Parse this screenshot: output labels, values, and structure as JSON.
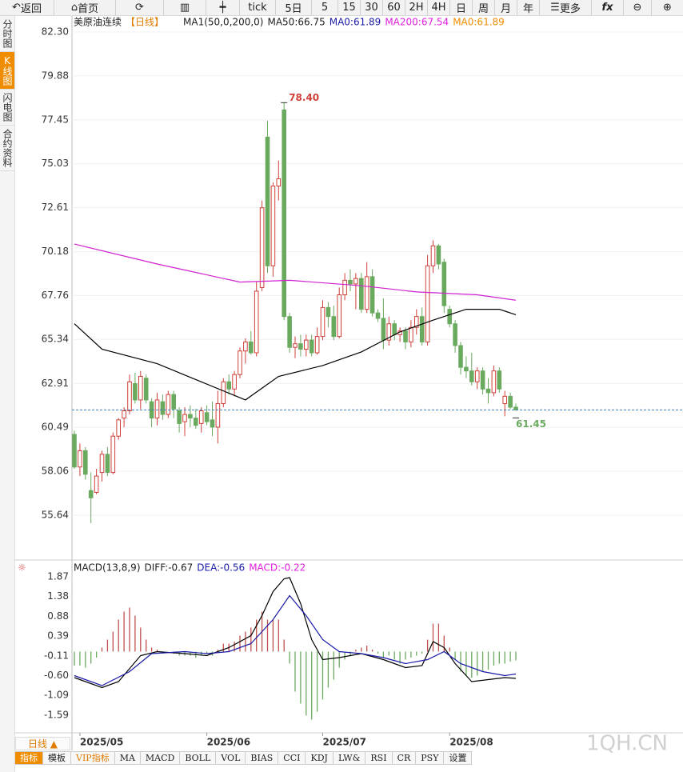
{
  "toolbar": [
    "返回",
    "首页",
    "tick",
    "5日",
    "5",
    "15",
    "30",
    "60",
    "2H",
    "4H",
    "日",
    "周",
    "月",
    "年",
    "更多",
    "fx"
  ],
  "side_tabs": [
    "分时图",
    "K线图",
    "闪电图",
    "合约资料"
  ],
  "period_button": "日线 ▲",
  "bottom_tabs": [
    "指标",
    "模板",
    "VIP指标",
    "MA",
    "MACD",
    "BOLL",
    "VOL",
    "BIAS",
    "CCI",
    "KDJ",
    "LW&",
    "RSI",
    "CR",
    "PSY",
    "设置"
  ],
  "watermark": "1QH.CN",
  "chart_data": [
    {
      "type": "candlestick",
      "legend": [
        {
          "text": "美原油连续",
          "color": "#222222"
        },
        {
          "text": "【日线】",
          "color": "#e07b00"
        },
        {
          "text": "MA1(50,0,200,0)",
          "color": "#222222"
        },
        {
          "text": "MA50:66.75",
          "color": "#222222"
        },
        {
          "text": "MA0:61.89",
          "color": "#1a1aa8"
        },
        {
          "text": "MA200:67.54",
          "color": "#e020e0"
        },
        {
          "text": "MA0:61.89",
          "color": "#f08c00"
        }
      ],
      "ylim": [
        53.39,
        82.96
      ],
      "yticks": [
        {
          "value": 82.3,
          "label": "82.30"
        },
        {
          "value": 79.88,
          "label": "79.88"
        },
        {
          "value": 77.45,
          "label": "77.45"
        },
        {
          "value": 75.03,
          "label": "75.03"
        },
        {
          "value": 72.61,
          "label": "72.61"
        },
        {
          "value": 70.18,
          "label": "70.18"
        },
        {
          "value": 67.76,
          "label": "67.76"
        },
        {
          "value": 65.34,
          "label": "65.34"
        },
        {
          "value": 62.91,
          "label": "62.91"
        },
        {
          "value": 60.49,
          "label": "60.49"
        },
        {
          "value": 58.06,
          "label": "58.06"
        },
        {
          "value": 55.64,
          "label": "55.64"
        }
      ],
      "grid": true,
      "xticks": [
        {
          "value": 1,
          "label": "2025/05"
        },
        {
          "value": 24,
          "label": "2025/06"
        },
        {
          "value": 45,
          "label": "2025/07"
        },
        {
          "value": 68,
          "label": "2025/08"
        }
      ],
      "up_color": "#d0403a",
      "down_color": "#6aaa5f",
      "candles": [
        [
          60.1,
          60.3,
          58.2,
          58.3
        ],
        [
          58.3,
          59.6,
          57.8,
          59.2
        ],
        [
          59.2,
          59.4,
          57.6,
          57.9
        ],
        [
          57.0,
          58.0,
          55.2,
          56.6
        ],
        [
          56.9,
          58.2,
          56.8,
          57.8
        ],
        [
          58.0,
          59.2,
          57.5,
          59.0
        ],
        [
          59.0,
          59.4,
          57.8,
          58.0
        ],
        [
          58.0,
          60.2,
          57.9,
          60.0
        ],
        [
          60.0,
          61.0,
          59.8,
          60.9
        ],
        [
          61.0,
          61.6,
          60.5,
          61.4
        ],
        [
          61.4,
          63.4,
          61.2,
          63.0
        ],
        [
          62.9,
          63.5,
          61.8,
          62.0
        ],
        [
          62.0,
          63.6,
          61.5,
          63.3
        ],
        [
          63.2,
          63.4,
          61.8,
          62.0
        ],
        [
          61.9,
          62.1,
          60.5,
          61.0
        ],
        [
          61.0,
          62.4,
          60.6,
          62.0
        ],
        [
          61.9,
          62.3,
          60.9,
          61.2
        ],
        [
          61.2,
          62.5,
          61.0,
          62.3
        ],
        [
          62.3,
          62.5,
          61.0,
          61.5
        ],
        [
          61.4,
          61.6,
          60.2,
          60.7
        ],
        [
          60.8,
          61.6,
          60.0,
          61.2
        ],
        [
          61.2,
          61.7,
          60.5,
          61.0
        ],
        [
          61.0,
          61.5,
          60.4,
          60.6
        ],
        [
          60.7,
          61.6,
          60.2,
          61.4
        ],
        [
          61.3,
          61.7,
          60.6,
          60.8
        ],
        [
          60.9,
          61.9,
          60.0,
          60.5
        ],
        [
          60.5,
          62.5,
          59.6,
          61.8
        ],
        [
          61.8,
          63.2,
          61.6,
          63.0
        ],
        [
          63.0,
          63.4,
          62.3,
          62.6
        ],
        [
          62.6,
          63.6,
          62.2,
          63.4
        ],
        [
          63.4,
          64.9,
          63.2,
          64.7
        ],
        [
          64.7,
          65.4,
          64.0,
          65.2
        ],
        [
          65.2,
          65.8,
          64.5,
          64.6
        ],
        [
          64.6,
          68.5,
          64.4,
          68.0
        ],
        [
          68.2,
          73.0,
          68.0,
          72.6
        ],
        [
          76.5,
          77.4,
          69.0,
          69.4
        ],
        [
          69.4,
          74.0,
          68.8,
          73.8
        ],
        [
          73.8,
          75.2,
          73.0,
          74.2
        ],
        [
          78.0,
          78.4,
          66.4,
          66.6
        ],
        [
          66.6,
          66.8,
          64.6,
          64.9
        ],
        [
          64.9,
          65.5,
          64.3,
          65.1
        ],
        [
          65.1,
          65.6,
          64.4,
          64.8
        ],
        [
          64.8,
          65.6,
          64.4,
          65.3
        ],
        [
          65.3,
          65.6,
          64.4,
          64.6
        ],
        [
          64.6,
          66.0,
          64.5,
          65.5
        ],
        [
          65.5,
          67.5,
          65.3,
          67.1
        ],
        [
          67.1,
          67.4,
          66.0,
          66.6
        ],
        [
          66.6,
          67.2,
          65.3,
          65.5
        ],
        [
          65.5,
          68.2,
          65.4,
          67.8
        ],
        [
          67.8,
          69.0,
          67.5,
          68.6
        ],
        [
          68.6,
          69.2,
          68.0,
          68.4
        ],
        [
          68.4,
          69.0,
          67.0,
          68.7
        ],
        [
          68.7,
          69.0,
          66.8,
          67.0
        ],
        [
          67.0,
          69.6,
          66.8,
          68.8
        ],
        [
          68.8,
          69.2,
          66.6,
          66.8
        ],
        [
          66.8,
          67.0,
          66.3,
          66.5
        ],
        [
          66.5,
          67.6,
          64.8,
          65.3
        ],
        [
          65.3,
          66.6,
          65.0,
          66.2
        ],
        [
          66.2,
          66.4,
          65.3,
          65.6
        ],
        [
          65.6,
          66.0,
          65.2,
          65.8
        ],
        [
          65.8,
          66.0,
          64.8,
          65.2
        ],
        [
          65.2,
          66.4,
          64.9,
          66.0
        ],
        [
          66.0,
          67.0,
          65.6,
          66.6
        ],
        [
          66.6,
          67.1,
          65.0,
          65.2
        ],
        [
          65.2,
          70.0,
          65.0,
          69.4
        ],
        [
          69.4,
          70.8,
          69.0,
          70.5
        ],
        [
          70.5,
          70.6,
          69.2,
          69.5
        ],
        [
          69.6,
          69.8,
          66.8,
          67.2
        ],
        [
          67.0,
          67.2,
          66.0,
          66.2
        ],
        [
          66.2,
          66.4,
          64.6,
          65.0
        ],
        [
          65.0,
          65.2,
          63.4,
          63.8
        ],
        [
          63.8,
          64.4,
          63.2,
          63.6
        ],
        [
          63.6,
          64.6,
          62.8,
          63.0
        ],
        [
          63.0,
          63.8,
          62.6,
          63.6
        ],
        [
          63.6,
          63.8,
          62.3,
          62.6
        ],
        [
          62.6,
          63.2,
          61.8,
          62.4
        ],
        [
          62.4,
          63.9,
          62.2,
          63.6
        ],
        [
          63.6,
          63.8,
          62.4,
          62.6
        ],
        [
          61.8,
          62.5,
          61.1,
          62.2
        ],
        [
          62.2,
          62.4,
          61.5,
          61.6
        ],
        [
          61.6,
          61.8,
          61.4,
          61.45
        ]
      ],
      "lines": [
        {
          "color": "#000000",
          "x": [
            0,
            5,
            15,
            23,
            31,
            37,
            45,
            52,
            59,
            65,
            71,
            77,
            80
          ],
          "values": [
            66.2,
            64.8,
            64.0,
            63.0,
            62.0,
            63.3,
            63.9,
            64.65,
            65.75,
            66.4,
            67.0,
            67.0,
            66.7
          ]
        },
        {
          "color": "#d020d0",
          "x": [
            0,
            15,
            30,
            39,
            52,
            62,
            73,
            80
          ],
          "values": [
            70.6,
            69.5,
            68.5,
            68.6,
            68.3,
            67.96,
            67.8,
            67.5
          ]
        }
      ],
      "annotations": [
        {
          "label": "78.40",
          "value": 78.4,
          "index": 38,
          "color": "#d0403a"
        },
        {
          "label": "61.45",
          "value": 61.45,
          "index": 80,
          "color": "#6aaa5f"
        }
      ]
    },
    {
      "type": "macd",
      "legend": [
        {
          "text": "MACD(13,8,9)",
          "color": "#222222"
        },
        {
          "text": "DIFF:-0.67",
          "color": "#222222"
        },
        {
          "text": "DEA:-0.56",
          "color": "#1a1aa8"
        },
        {
          "text": "MACD:-0.22",
          "color": "#e020e0"
        }
      ],
      "ylim": [
        -1.95,
        2.05
      ],
      "yticks": [
        1.87,
        1.38,
        0.88,
        0.39,
        -0.11,
        {
          "value": -0.6,
          "label": "-0.60"
        },
        -1.09,
        -1.59
      ],
      "up_color": "#c0504d",
      "down_color": "#6aaa5f",
      "histogram": [
        -0.35,
        -0.35,
        -0.4,
        -0.3,
        -0.15,
        0.1,
        0.3,
        0.5,
        0.8,
        1.0,
        1.1,
        0.9,
        0.6,
        0.3,
        0.1,
        0.05,
        -0.05,
        0,
        -0.05,
        -0.1,
        -0.1,
        -0.1,
        -0.15,
        -0.1,
        -0.05,
        -0.1,
        0.05,
        0.2,
        0.2,
        0.25,
        0.4,
        0.5,
        0.6,
        0.8,
        1.0,
        0.8,
        0.8,
        0.8,
        0.3,
        -0.3,
        -1.0,
        -1.3,
        -1.6,
        -1.7,
        -1.5,
        -1.2,
        -0.9,
        -0.7,
        -0.4,
        -0.2,
        -0.1,
        0.05,
        0.1,
        0.15,
        0.05,
        -0.05,
        -0.15,
        -0.1,
        -0.2,
        -0.3,
        -0.2,
        -0.15,
        -0.1,
        -0.05,
        0.3,
        0.7,
        0.7,
        0.4,
        0.1,
        -0.2,
        -0.5,
        -0.6,
        -0.65,
        -0.6,
        -0.5,
        -0.45,
        -0.35,
        -0.3,
        -0.3,
        -0.25,
        -0.22
      ],
      "lines": [
        {
          "color": "#000000",
          "x": [
            0,
            5,
            8,
            12,
            15,
            20,
            24,
            28,
            32,
            34,
            36,
            38,
            39,
            41,
            43,
            45,
            48,
            52,
            56,
            60,
            63,
            65,
            67,
            69,
            72,
            75,
            78,
            80
          ],
          "values": [
            -0.65,
            -0.9,
            -0.75,
            -0.1,
            0.0,
            -0.05,
            -0.1,
            0.1,
            0.4,
            0.9,
            1.5,
            1.82,
            1.85,
            1.2,
            0.3,
            -0.2,
            -0.15,
            -0.05,
            -0.2,
            -0.4,
            -0.35,
            0.25,
            0.1,
            -0.3,
            -0.75,
            -0.7,
            -0.65,
            -0.67
          ]
        },
        {
          "color": "#1a1aa8",
          "x": [
            0,
            5,
            10,
            14,
            20,
            24,
            28,
            32,
            36,
            39,
            42,
            45,
            48,
            52,
            56,
            60,
            64,
            67,
            70,
            74,
            78,
            80
          ],
          "values": [
            -0.6,
            -0.85,
            -0.5,
            -0.05,
            0,
            -0.05,
            0.0,
            0.2,
            0.8,
            1.4,
            0.9,
            0.3,
            0.0,
            -0.05,
            -0.15,
            -0.3,
            -0.2,
            0.0,
            -0.3,
            -0.5,
            -0.6,
            -0.56
          ]
        }
      ]
    }
  ]
}
